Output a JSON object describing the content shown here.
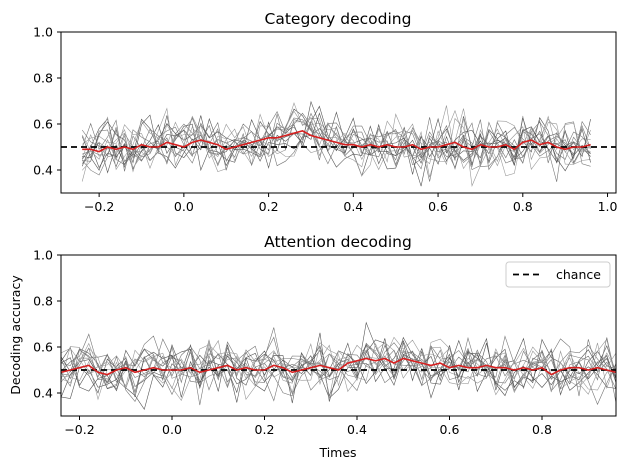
{
  "chart_data": [
    {
      "type": "line",
      "title": "Category decoding",
      "xlabel": "",
      "ylabel": "",
      "xlim": [
        -0.29,
        1.02
      ],
      "ylim": [
        0.3,
        1.0
      ],
      "xticks": [
        -0.2,
        0.0,
        0.2,
        0.4,
        0.6,
        0.8,
        1.0
      ],
      "xtick_labels": [
        "−0.2",
        "0.0",
        "0.2",
        "0.4",
        "0.6",
        "0.8",
        "1.0"
      ],
      "yticks": [
        0.4,
        0.6,
        0.8,
        1.0
      ],
      "ytick_labels": [
        "0.4",
        "0.6",
        "0.8",
        "1.0"
      ],
      "grid": false,
      "chance_level": 0.5,
      "chance_x_range": [
        -0.29,
        1.02
      ],
      "x": [
        -0.24,
        -0.22,
        -0.2,
        -0.18,
        -0.16,
        -0.14,
        -0.12,
        -0.1,
        -0.08,
        -0.06,
        -0.04,
        -0.02,
        0.0,
        0.02,
        0.04,
        0.06,
        0.08,
        0.1,
        0.12,
        0.14,
        0.16,
        0.18,
        0.2,
        0.22,
        0.24,
        0.26,
        0.28,
        0.3,
        0.32,
        0.34,
        0.36,
        0.38,
        0.4,
        0.42,
        0.44,
        0.46,
        0.48,
        0.5,
        0.52,
        0.54,
        0.56,
        0.58,
        0.6,
        0.62,
        0.64,
        0.66,
        0.68,
        0.7,
        0.72,
        0.74,
        0.76,
        0.78,
        0.8,
        0.82,
        0.84,
        0.86,
        0.88,
        0.9,
        0.92,
        0.94,
        0.96
      ],
      "mean": [
        0.49,
        0.49,
        0.48,
        0.5,
        0.49,
        0.5,
        0.49,
        0.51,
        0.5,
        0.5,
        0.52,
        0.51,
        0.5,
        0.52,
        0.53,
        0.52,
        0.51,
        0.49,
        0.5,
        0.51,
        0.52,
        0.53,
        0.54,
        0.54,
        0.55,
        0.56,
        0.57,
        0.55,
        0.54,
        0.53,
        0.52,
        0.51,
        0.51,
        0.5,
        0.51,
        0.5,
        0.51,
        0.5,
        0.5,
        0.51,
        0.49,
        0.5,
        0.5,
        0.51,
        0.52,
        0.5,
        0.49,
        0.51,
        0.5,
        0.5,
        0.51,
        0.49,
        0.52,
        0.53,
        0.51,
        0.52,
        0.5,
        0.49,
        0.5,
        0.5,
        0.51
      ],
      "individual_traces": 15,
      "individual_spread": 0.09
    },
    {
      "type": "line",
      "title": "Attention decoding",
      "xlabel": "Times",
      "ylabel": "Decoding accuracy",
      "xlim": [
        -0.24,
        0.96
      ],
      "ylim": [
        0.3,
        1.0
      ],
      "xticks": [
        -0.2,
        0.0,
        0.2,
        0.4,
        0.6,
        0.8
      ],
      "xtick_labels": [
        "−0.2",
        "0.0",
        "0.2",
        "0.4",
        "0.6",
        "0.8"
      ],
      "yticks": [
        0.4,
        0.6,
        0.8,
        1.0
      ],
      "ytick_labels": [
        "0.4",
        "0.6",
        "0.8",
        "1.0"
      ],
      "grid": false,
      "chance_level": 0.5,
      "chance_x_range": [
        -0.24,
        0.96
      ],
      "legend": {
        "position": "upper-right",
        "label": "chance"
      },
      "x": [
        -0.24,
        -0.22,
        -0.2,
        -0.18,
        -0.16,
        -0.14,
        -0.12,
        -0.1,
        -0.08,
        -0.06,
        -0.04,
        -0.02,
        0.0,
        0.02,
        0.04,
        0.06,
        0.08,
        0.1,
        0.12,
        0.14,
        0.16,
        0.18,
        0.2,
        0.22,
        0.24,
        0.26,
        0.28,
        0.3,
        0.32,
        0.34,
        0.36,
        0.38,
        0.4,
        0.42,
        0.44,
        0.46,
        0.48,
        0.5,
        0.52,
        0.54,
        0.56,
        0.58,
        0.6,
        0.62,
        0.64,
        0.66,
        0.68,
        0.7,
        0.72,
        0.74,
        0.76,
        0.78,
        0.8,
        0.82,
        0.84,
        0.86,
        0.88,
        0.9,
        0.92,
        0.94,
        0.96
      ],
      "mean": [
        0.49,
        0.5,
        0.51,
        0.52,
        0.49,
        0.48,
        0.5,
        0.51,
        0.49,
        0.5,
        0.51,
        0.5,
        0.5,
        0.5,
        0.51,
        0.49,
        0.5,
        0.51,
        0.52,
        0.5,
        0.51,
        0.5,
        0.5,
        0.52,
        0.51,
        0.49,
        0.5,
        0.51,
        0.52,
        0.51,
        0.5,
        0.53,
        0.54,
        0.55,
        0.54,
        0.55,
        0.53,
        0.55,
        0.54,
        0.53,
        0.52,
        0.53,
        0.51,
        0.52,
        0.51,
        0.51,
        0.52,
        0.51,
        0.51,
        0.5,
        0.51,
        0.5,
        0.51,
        0.48,
        0.5,
        0.51,
        0.51,
        0.5,
        0.51,
        0.5,
        0.49
      ],
      "individual_traces": 15,
      "individual_spread": 0.09
    }
  ]
}
